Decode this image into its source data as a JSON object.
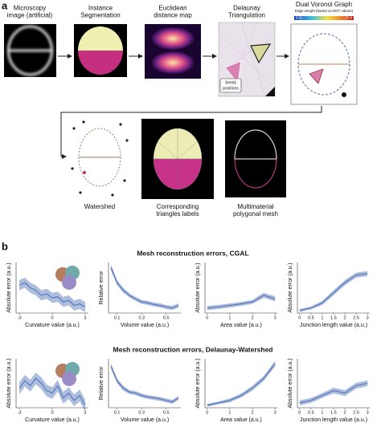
{
  "panel_a": {
    "label": "a",
    "row1": [
      {
        "lines": [
          "Microscopy",
          "image (artificial)"
        ]
      },
      {
        "lines": [
          "Instance",
          "Segmentation"
        ]
      },
      {
        "lines": [
          "Euclidean",
          "distance map"
        ]
      },
      {
        "lines": [
          "Delaunay",
          "Triangulation"
        ]
      },
      {
        "lines": [
          "Dual Voronoi Graph"
        ]
      }
    ],
    "colorbar": {
      "title": "Edge weight (based on EDT values)",
      "min": 0.61,
      "max": 27.4
    },
    "seeds_label": [
      "Seeds",
      "positions"
    ],
    "row2": [
      {
        "lines": [
          "Watershed"
        ]
      },
      {
        "lines": [
          "Corresponding",
          "triangles labels"
        ]
      },
      {
        "lines": [
          "Multimaterial",
          "polygonal mesh"
        ]
      }
    ]
  },
  "panel_b": {
    "label": "b",
    "titles": [
      "Mesh reconstruction errors, CGAL",
      "Mesh reconstruction errors, Delaunay-Watershed"
    ]
  },
  "chart_data": [
    {
      "type": "line",
      "xlabel": "Curvature value (a.u.)",
      "ylabel": "Absolute error (a.u.)",
      "x": [
        -3,
        -2.5,
        -2,
        -1.5,
        -1,
        -0.5,
        0,
        0.5,
        1,
        1.5,
        2,
        2.5,
        3
      ],
      "xlim": [
        -3.3,
        3.3
      ],
      "xticks": [
        -3,
        0,
        3
      ],
      "ylim": [
        0,
        1
      ],
      "series": [
        {
          "color": "#4a6cb3",
          "values": [
            0.55,
            0.6,
            0.5,
            0.45,
            0.35,
            0.38,
            0.3,
            0.32,
            0.22,
            0.25,
            0.15,
            0.18,
            0.12
          ],
          "error": [
            0.1,
            0.1,
            0.1,
            0.1,
            0.1,
            0.1,
            0.1,
            0.1,
            0.1,
            0.1,
            0.1,
            0.1,
            0.1
          ]
        }
      ]
    },
    {
      "type": "line",
      "xlabel": "Volume value (a.u.)",
      "ylabel": "Relative error",
      "x": [
        0.05,
        0.1,
        0.15,
        0.2,
        0.25,
        0.3,
        0.35,
        0.4,
        0.45,
        0.5,
        0.55,
        0.6
      ],
      "xlim": [
        0.03,
        0.62
      ],
      "xticks": [
        0.1,
        0.3,
        0.5
      ],
      "ylim": [
        0,
        1
      ],
      "series": [
        {
          "color": "#4a6cb3",
          "values": [
            0.9,
            0.6,
            0.45,
            0.35,
            0.28,
            0.22,
            0.2,
            0.17,
            0.15,
            0.12,
            0.1,
            0.15
          ],
          "error": [
            0.06,
            0.05,
            0.05,
            0.04,
            0.04,
            0.04,
            0.04,
            0.04,
            0.04,
            0.04,
            0.04,
            0.04
          ]
        }
      ]
    },
    {
      "type": "line",
      "xlabel": "Area value (a.u.)",
      "ylabel": "Absolute error (a.u.)",
      "x": [
        0,
        0.5,
        1,
        1.5,
        2,
        2.5,
        3
      ],
      "xlim": [
        -0.1,
        3.1
      ],
      "xticks": [
        0,
        1,
        2,
        3
      ],
      "ylim": [
        0,
        1
      ],
      "series": [
        {
          "color": "#4a6cb3",
          "values": [
            0.1,
            0.12,
            0.15,
            0.18,
            0.22,
            0.35,
            0.28
          ],
          "error": [
            0.04,
            0.04,
            0.04,
            0.04,
            0.04,
            0.05,
            0.05
          ]
        }
      ]
    },
    {
      "type": "line",
      "xlabel": "Junction length value (a.u.)",
      "ylabel": "Absolute error (a.u.)",
      "x": [
        0,
        0.5,
        1,
        1.5,
        2,
        2.5,
        3
      ],
      "xlim": [
        -0.1,
        3.1
      ],
      "xticks": [
        0,
        0.5,
        1,
        1.5,
        2,
        2.5,
        3
      ],
      "ylim": [
        0,
        1
      ],
      "series": [
        {
          "color": "#4a6cb3",
          "values": [
            0.05,
            0.1,
            0.2,
            0.4,
            0.6,
            0.75,
            0.78
          ],
          "error": [
            0.03,
            0.03,
            0.04,
            0.05,
            0.05,
            0.05,
            0.05
          ]
        }
      ]
    },
    {
      "type": "line",
      "xlabel": "Curvature value (a.u.)",
      "ylabel": "Absolute error (a.u.)",
      "x": [
        -3,
        -2.5,
        -2,
        -1.5,
        -1,
        -0.5,
        0,
        0.5,
        1,
        1.5,
        2,
        2.5,
        3
      ],
      "xlim": [
        -3.3,
        3.3
      ],
      "xticks": [
        -3,
        0,
        3
      ],
      "ylim": [
        0,
        1
      ],
      "series": [
        {
          "color": "#4a6cb3",
          "values": [
            0.4,
            0.55,
            0.45,
            0.6,
            0.5,
            0.35,
            0.3,
            0.45,
            0.2,
            0.3,
            0.15,
            0.25,
            0.05
          ],
          "error": [
            0.12,
            0.12,
            0.12,
            0.12,
            0.12,
            0.12,
            0.12,
            0.12,
            0.12,
            0.12,
            0.12,
            0.12,
            0.12
          ]
        }
      ]
    },
    {
      "type": "line",
      "xlabel": "Volume value (a.u.)",
      "ylabel": "Relative error",
      "x": [
        0.05,
        0.1,
        0.15,
        0.2,
        0.25,
        0.3,
        0.35,
        0.4,
        0.45,
        0.5,
        0.55,
        0.6
      ],
      "xlim": [
        0.03,
        0.62
      ],
      "xticks": [
        0.1,
        0.3,
        0.5
      ],
      "ylim": [
        0,
        1
      ],
      "series": [
        {
          "color": "#4a6cb3",
          "values": [
            0.85,
            0.55,
            0.4,
            0.32,
            0.3,
            0.25,
            0.22,
            0.2,
            0.18,
            0.15,
            0.12,
            0.2
          ],
          "error": [
            0.06,
            0.05,
            0.05,
            0.04,
            0.04,
            0.04,
            0.04,
            0.04,
            0.04,
            0.04,
            0.04,
            0.04
          ]
        }
      ]
    },
    {
      "type": "line",
      "xlabel": "Area value (a.u.)",
      "ylabel": "Absolute error (a.u.)",
      "x": [
        0,
        0.5,
        1,
        1.5,
        2,
        2.5,
        3
      ],
      "xlim": [
        -0.1,
        3.1
      ],
      "xticks": [
        0,
        1,
        2,
        3
      ],
      "ylim": [
        0,
        1
      ],
      "series": [
        {
          "color": "#4a6cb3",
          "values": [
            0.05,
            0.1,
            0.15,
            0.25,
            0.4,
            0.6,
            0.9
          ],
          "error": [
            0.03,
            0.03,
            0.04,
            0.04,
            0.05,
            0.05,
            0.06
          ]
        }
      ]
    },
    {
      "type": "line",
      "xlabel": "Junction length value (a.u.)",
      "ylabel": "Absolute error (a.u.)",
      "x": [
        0,
        0.5,
        1,
        1.5,
        2,
        2.5,
        3
      ],
      "xlim": [
        -0.1,
        3.1
      ],
      "xticks": [
        0,
        0.5,
        1,
        1.5,
        2,
        2.5,
        3
      ],
      "ylim": [
        0,
        1
      ],
      "series": [
        {
          "color": "#4a6cb3",
          "values": [
            0.1,
            0.15,
            0.25,
            0.35,
            0.3,
            0.45,
            0.5
          ],
          "error": [
            0.05,
            0.05,
            0.05,
            0.06,
            0.06,
            0.06,
            0.06
          ]
        }
      ]
    }
  ]
}
